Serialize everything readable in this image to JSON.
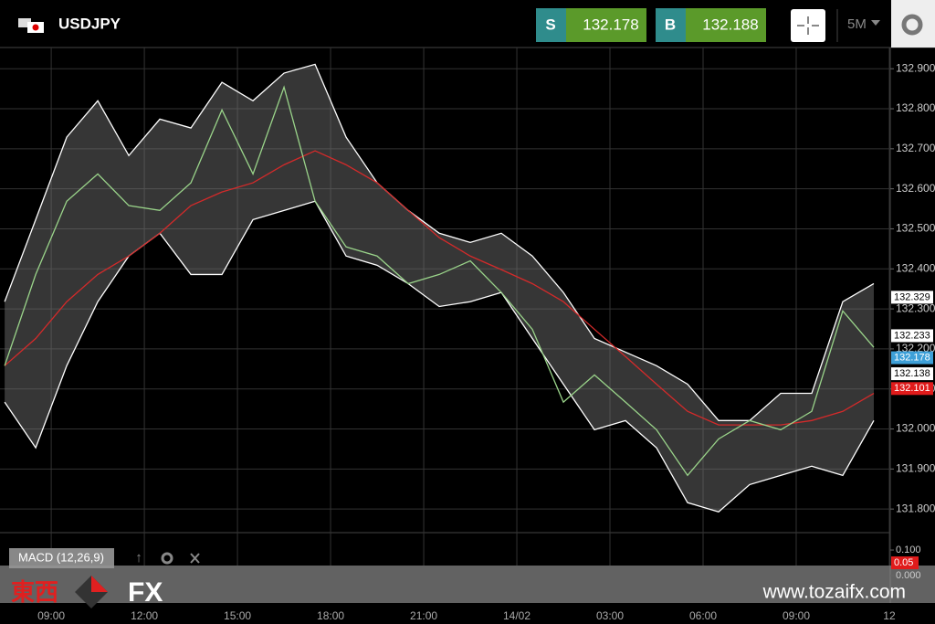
{
  "header": {
    "symbol": "USDJPY",
    "sell_label": "S",
    "sell": "132.178",
    "buy_label": "B",
    "buy": "132.188",
    "timeframe": "5M"
  },
  "chart_data": {
    "type": "line",
    "x": [
      7.5,
      8.5,
      9.5,
      10.5,
      11.5,
      12.5,
      13.5,
      14.5,
      15.5,
      16.5,
      17.5,
      18.5,
      19.5,
      20.5,
      21.5,
      22.5,
      23.5,
      24.5,
      25.5,
      26.5,
      27.5,
      28.5,
      29.5,
      30.5,
      31.5,
      32.5,
      33.5,
      34.5,
      35.5
    ],
    "series": [
      {
        "color": "#ffffff",
        "values": [
          132.318,
          132.523,
          132.729,
          132.82,
          132.683,
          132.774,
          132.752,
          132.866,
          132.82,
          132.889,
          132.911,
          132.729,
          132.615,
          132.546,
          132.489,
          132.466,
          132.489,
          132.432,
          132.341,
          132.226,
          132.192,
          132.158,
          132.112,
          132.021,
          132.021,
          132.089,
          132.089,
          132.318,
          132.363
        ]
      },
      {
        "color": "#ffffff",
        "values": [
          132.067,
          131.953,
          132.158,
          132.318,
          132.432,
          132.489,
          132.386,
          132.386,
          132.523,
          132.546,
          132.569,
          132.432,
          132.409,
          132.363,
          132.306,
          132.318,
          132.341,
          132.226,
          132.112,
          131.998,
          132.021,
          131.953,
          131.816,
          131.793,
          131.861,
          131.884,
          131.907,
          131.884,
          132.021
        ]
      },
      {
        "color": "#d42a2a",
        "values": [
          132.158,
          132.226,
          132.318,
          132.386,
          132.432,
          132.489,
          132.558,
          132.592,
          132.615,
          132.66,
          132.695,
          132.66,
          132.615,
          132.546,
          132.478,
          132.432,
          132.398,
          132.363,
          132.318,
          132.249,
          132.181,
          132.112,
          132.044,
          132.01,
          132.01,
          132.01,
          132.021,
          132.044,
          132.089
        ]
      },
      {
        "color": "#9ad48a",
        "values": [
          132.158,
          132.386,
          132.569,
          132.637,
          132.558,
          132.546,
          132.615,
          132.797,
          132.637,
          132.854,
          132.569,
          132.455,
          132.432,
          132.363,
          132.386,
          132.42,
          132.341,
          132.249,
          132.067,
          132.135,
          132.067,
          131.998,
          131.884,
          131.975,
          132.021,
          131.998,
          132.044,
          132.295,
          132.204
        ]
      }
    ],
    "band": true,
    "xlim": [
      7.35,
      36.03
    ],
    "xticks": [
      {
        "value": 9,
        "label": "09:00"
      },
      {
        "value": 12,
        "label": "12:00"
      },
      {
        "value": 15,
        "label": "15:00"
      },
      {
        "value": 18,
        "label": "18:00"
      },
      {
        "value": 21,
        "label": "21:00"
      },
      {
        "value": 24,
        "label": "14/02"
      },
      {
        "value": 27,
        "label": "03:00"
      },
      {
        "value": 30,
        "label": "06:00"
      },
      {
        "value": 33,
        "label": "09:00"
      },
      {
        "value": 36,
        "label": "12"
      }
    ],
    "ylim": [
      131.741,
      132.953
    ],
    "yticks": [
      {
        "value": 131.8,
        "label": "131.800"
      },
      {
        "value": 131.9,
        "label": "131.900"
      },
      {
        "value": 132,
        "label": "132.000"
      },
      {
        "value": 132.1,
        "label": "132.100"
      },
      {
        "value": 132.2,
        "label": "132.200"
      },
      {
        "value": 132.3,
        "label": "132.300"
      },
      {
        "value": 132.4,
        "label": "132.400"
      },
      {
        "value": 132.5,
        "label": "132.500"
      },
      {
        "value": 132.6,
        "label": "132.600"
      },
      {
        "value": 132.7,
        "label": "132.700"
      },
      {
        "value": 132.8,
        "label": "132.800"
      },
      {
        "value": 132.9,
        "label": "132.900"
      }
    ],
    "grid": true,
    "price_markers": [
      {
        "value": 132.329,
        "color": "#ffffff"
      },
      {
        "value": 132.233,
        "color": "#ffffff"
      },
      {
        "value": 132.178,
        "color": "#3ea0d8"
      },
      {
        "value": 132.138,
        "color": "#ffffff"
      },
      {
        "value": 132.101,
        "color": "#e01b1b"
      }
    ]
  },
  "macd": {
    "label": "MACD (12,26,9)",
    "ylim": [
      -0.107,
      0.168
    ],
    "yticks": [
      {
        "value": 0.1,
        "label": "0.100"
      },
      {
        "value": 0,
        "label": "0.000"
      }
    ],
    "marker": {
      "value": 0.05,
      "color": "#e01b1b"
    }
  },
  "watermark": {
    "brand_left": "東西",
    "brand_right": "FX",
    "url": "www.tozaifx.com"
  }
}
